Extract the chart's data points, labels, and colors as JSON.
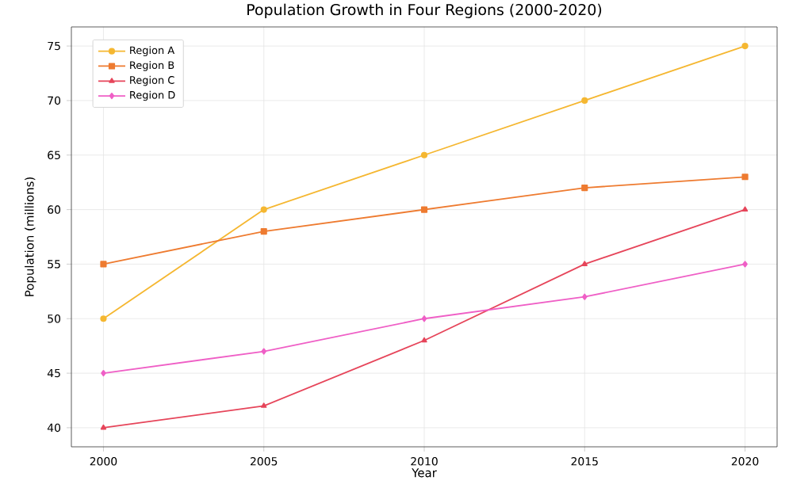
{
  "chart_data": {
    "type": "line",
    "title": "Population Growth in Four Regions (2000-2020)",
    "xlabel": "Year",
    "ylabel": "Population (millions)",
    "x": [
      2000,
      2005,
      2010,
      2015,
      2020
    ],
    "series": [
      {
        "name": "Region A",
        "color": "#f5b731",
        "marker": "circle",
        "values": [
          50,
          60,
          65,
          70,
          75
        ]
      },
      {
        "name": "Region B",
        "color": "#ee7b30",
        "marker": "square",
        "values": [
          55,
          58,
          60,
          62,
          63
        ]
      },
      {
        "name": "Region C",
        "color": "#e6455a",
        "marker": "triangle",
        "values": [
          40,
          42,
          48,
          55,
          60
        ]
      },
      {
        "name": "Region D",
        "color": "#ef5fc6",
        "marker": "diamond",
        "values": [
          45,
          47,
          50,
          52,
          55
        ]
      }
    ],
    "xlim": [
      1999,
      2021
    ],
    "ylim": [
      38.25,
      76.75
    ],
    "xticks": [
      2000,
      2005,
      2010,
      2015,
      2020
    ],
    "yticks": [
      40,
      45,
      50,
      55,
      60,
      65,
      70,
      75
    ],
    "grid": true,
    "legend": "top left",
    "line_style": "solid"
  }
}
